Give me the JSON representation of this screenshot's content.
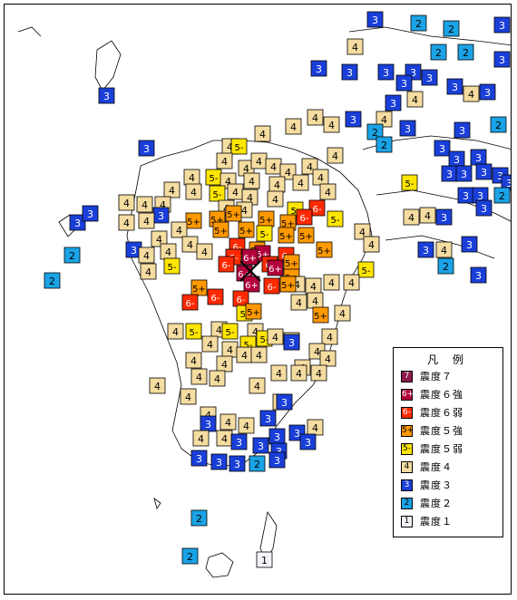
{
  "legend": {
    "title": "凡 例",
    "items": [
      {
        "symbol": "7",
        "label": "震度７",
        "fill": "#8c1a4b",
        "text_color": "#ffffff"
      },
      {
        "symbol": "6+",
        "label": "震度６強",
        "fill": "#b3003b",
        "text_color": "#ffffff"
      },
      {
        "symbol": "6-",
        "label": "震度６弱",
        "fill": "#ff2a00",
        "text_color": "#ffffff"
      },
      {
        "symbol": "5+",
        "label": "震度５強",
        "fill": "#ff9900",
        "text_color": "#000000"
      },
      {
        "symbol": "5-",
        "label": "震度５弱",
        "fill": "#ffe600",
        "text_color": "#000000"
      },
      {
        "symbol": "4",
        "label": "震度４",
        "fill": "#f5dca0",
        "text_color": "#000000"
      },
      {
        "symbol": "3",
        "label": "震度３",
        "fill": "#1a3fd9",
        "text_color": "#ffffff"
      },
      {
        "symbol": "2",
        "label": "震度２",
        "fill": "#1aa3e6",
        "text_color": "#000000"
      },
      {
        "symbol": "1",
        "label": "震度１",
        "fill": "#f2f2fa",
        "text_color": "#000000"
      }
    ]
  },
  "epicenter_symbol": "×"
}
